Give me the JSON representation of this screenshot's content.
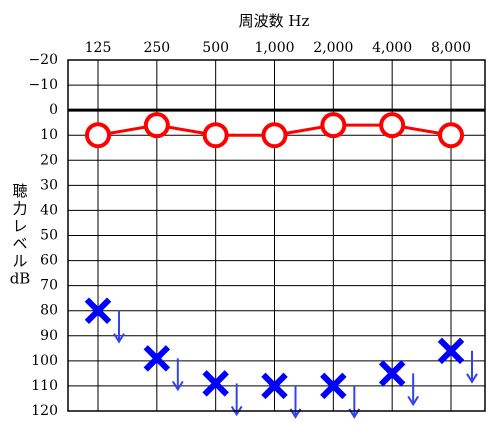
{
  "chart_data": {
    "type": "line",
    "title": "",
    "xlabel": "周波数 Hz",
    "ylabel": "聴力レベル dB",
    "ylabel_lines": [
      "聴",
      "力",
      "レ",
      "ベ",
      "ル",
      "dB"
    ],
    "x_categories": [
      "125",
      "250",
      "500",
      "1,000",
      "2,000",
      "4,000",
      "8,000"
    ],
    "y_ticks": [
      -20,
      -10,
      0,
      10,
      20,
      30,
      40,
      50,
      60,
      70,
      80,
      90,
      100,
      110,
      120
    ],
    "y_tick_labels": [
      "−20",
      "−10",
      "0",
      "10",
      "20",
      "30",
      "40",
      "50",
      "60",
      "70",
      "80",
      "90",
      "100",
      "110",
      "120"
    ],
    "ylim": [
      -20,
      120
    ],
    "y_inverted": true,
    "x_axis_position": "top",
    "grid": true,
    "reference_line": 0,
    "series": [
      {
        "marker": "circle",
        "connected": true,
        "color": "#ff0000",
        "values": [
          10,
          6,
          10,
          10,
          6,
          6,
          10
        ]
      },
      {
        "marker": "x",
        "connected": false,
        "scale_out": true,
        "color": "#0000ff",
        "arrow_color": "#3344ee",
        "values": [
          80,
          99,
          109,
          110,
          110,
          105,
          96
        ]
      }
    ]
  }
}
